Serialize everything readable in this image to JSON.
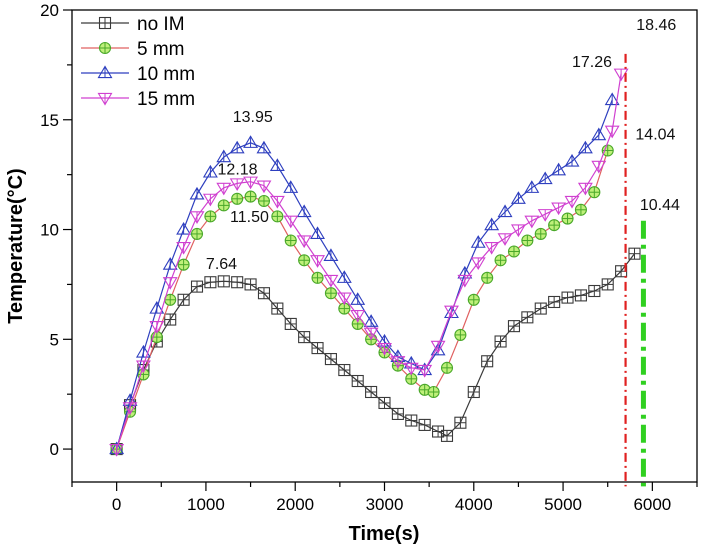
{
  "chart_data": {
    "type": "line",
    "title": "",
    "xlabel": "Time(s)",
    "ylabel": "Temperature(°C)",
    "xlim": [
      -500,
      6500
    ],
    "ylim": [
      -1.5,
      20
    ],
    "xticks": [
      "0",
      "1000",
      "2000",
      "3000",
      "4000",
      "5000",
      "6000"
    ],
    "yticks": [
      "0",
      "5",
      "10",
      "15",
      "20"
    ],
    "legend_position": "top-left",
    "series": [
      {
        "name": "no IM",
        "color": "#3a3a3a",
        "marker": "square",
        "x": [
          0,
          150,
          300,
          450,
          600,
          750,
          900,
          1050,
          1200,
          1350,
          1500,
          1650,
          1800,
          1950,
          2100,
          2250,
          2400,
          2550,
          2700,
          2850,
          3000,
          3150,
          3300,
          3450,
          3600,
          3700,
          3850,
          4000,
          4150,
          4300,
          4450,
          4600,
          4750,
          4900,
          5050,
          5200,
          5350,
          5500,
          5650,
          5800
        ],
        "y": [
          0,
          2.0,
          3.6,
          4.9,
          5.9,
          6.8,
          7.4,
          7.6,
          7.64,
          7.6,
          7.5,
          7.1,
          6.4,
          5.7,
          5.1,
          4.6,
          4.1,
          3.6,
          3.1,
          2.6,
          2.1,
          1.6,
          1.3,
          1.1,
          0.8,
          0.6,
          1.2,
          2.6,
          4.0,
          4.9,
          5.6,
          6.0,
          6.4,
          6.7,
          6.9,
          7.0,
          7.2,
          7.5,
          8.1,
          8.9
        ]
      },
      {
        "name": "5 mm",
        "color": "#e06060",
        "marker": "circle",
        "x": [
          0,
          150,
          300,
          450,
          600,
          750,
          900,
          1050,
          1200,
          1350,
          1500,
          1650,
          1800,
          1950,
          2100,
          2250,
          2400,
          2550,
          2700,
          2850,
          3000,
          3150,
          3300,
          3450,
          3550,
          3700,
          3850,
          4000,
          4150,
          4300,
          4450,
          4600,
          4750,
          4900,
          5050,
          5200,
          5350,
          5500
        ],
        "y": [
          0,
          1.7,
          3.4,
          5.1,
          6.8,
          8.4,
          9.8,
          10.6,
          11.1,
          11.4,
          11.5,
          11.3,
          10.6,
          9.5,
          8.6,
          7.8,
          7.1,
          6.4,
          5.7,
          5.0,
          4.4,
          3.8,
          3.2,
          2.7,
          2.6,
          3.7,
          5.2,
          6.8,
          7.8,
          8.6,
          9.0,
          9.5,
          9.8,
          10.2,
          10.5,
          10.9,
          11.7,
          13.6
        ]
      },
      {
        "name": "10 mm",
        "color": "#2e3fbf",
        "marker": "triangle-up",
        "x": [
          0,
          150,
          300,
          450,
          600,
          750,
          900,
          1050,
          1200,
          1350,
          1500,
          1650,
          1800,
          1950,
          2100,
          2250,
          2400,
          2550,
          2700,
          2850,
          3000,
          3150,
          3300,
          3450,
          3600,
          3750,
          3900,
          4050,
          4200,
          4350,
          4500,
          4650,
          4800,
          4950,
          5100,
          5250,
          5400,
          5550
        ],
        "y": [
          0,
          2.2,
          4.4,
          6.4,
          8.4,
          10.0,
          11.6,
          12.6,
          13.3,
          13.7,
          13.95,
          13.7,
          12.9,
          11.9,
          10.8,
          9.8,
          8.8,
          7.8,
          6.8,
          5.8,
          4.9,
          4.2,
          3.9,
          3.6,
          4.5,
          6.2,
          8.0,
          9.4,
          10.2,
          10.8,
          11.4,
          11.9,
          12.3,
          12.7,
          13.1,
          13.7,
          14.3,
          15.9
        ]
      },
      {
        "name": "15 mm",
        "color": "#d040d0",
        "marker": "triangle-down",
        "x": [
          0,
          150,
          300,
          450,
          600,
          750,
          900,
          1050,
          1200,
          1350,
          1500,
          1650,
          1800,
          1950,
          2100,
          2250,
          2400,
          2550,
          2700,
          2850,
          3000,
          3150,
          3300,
          3450,
          3600,
          3750,
          3900,
          4050,
          4200,
          4350,
          4500,
          4650,
          4800,
          4950,
          5100,
          5250,
          5400,
          5550,
          5650
        ],
        "y": [
          0,
          1.9,
          3.8,
          5.6,
          7.6,
          9.2,
          10.6,
          11.4,
          11.9,
          12.1,
          12.18,
          12.0,
          11.3,
          10.4,
          9.5,
          8.6,
          7.7,
          6.9,
          6.1,
          5.3,
          4.6,
          4.0,
          3.7,
          3.6,
          4.7,
          6.3,
          7.7,
          8.5,
          9.2,
          9.6,
          10.0,
          10.4,
          10.7,
          11.0,
          11.3,
          11.9,
          12.9,
          14.5,
          17.1
        ]
      }
    ],
    "annotations": [
      {
        "text": "7.64",
        "x": 1000,
        "y": 8.2
      },
      {
        "text": "11.50",
        "x": 1270,
        "y": 10.35
      },
      {
        "text": "12.18",
        "x": 1130,
        "y": 12.5
      },
      {
        "text": "13.95",
        "x": 1300,
        "y": 14.9
      },
      {
        "text": "17.26",
        "x": 5100,
        "y": 17.4
      },
      {
        "text": "18.46",
        "x": 5820,
        "y": 19.1
      },
      {
        "text": "14.04",
        "x": 5810,
        "y": 14.1
      },
      {
        "text": "10.44",
        "x": 5860,
        "y": 10.9
      }
    ],
    "reference_lines": [
      {
        "name": "red-dash-dot",
        "x": 5700,
        "y_from": 18.0,
        "y_to": -1.7,
        "color": "#e02020"
      },
      {
        "name": "green-dash-dot",
        "x": 5900,
        "y_from": 10.4,
        "y_to": -1.7,
        "color": "#30d020"
      }
    ]
  }
}
